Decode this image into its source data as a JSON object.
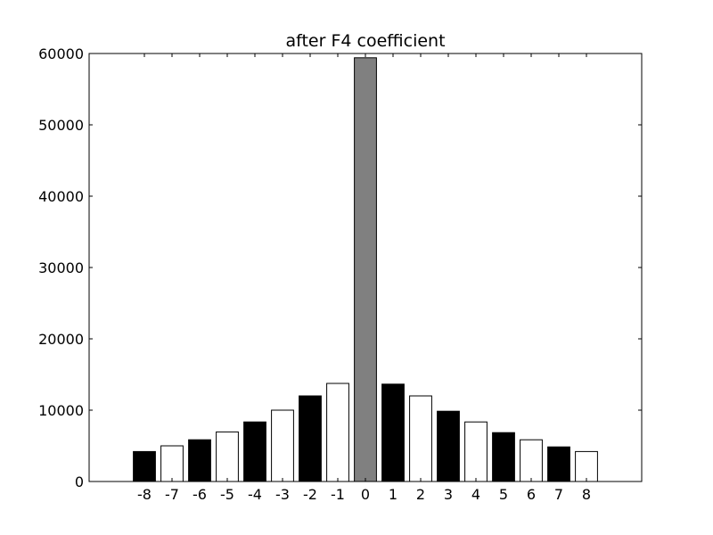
{
  "chart_data": {
    "type": "bar",
    "title": "after F4 coefficient",
    "xlabel": "",
    "ylabel": "",
    "categories": [
      "-8",
      "-7",
      "-6",
      "-5",
      "-4",
      "-3",
      "-2",
      "-1",
      "0",
      "1",
      "2",
      "3",
      "4",
      "5",
      "6",
      "7",
      "8"
    ],
    "values": [
      4200,
      5000,
      5850,
      6950,
      8350,
      10000,
      12000,
      13750,
      59400,
      13650,
      12000,
      9850,
      8350,
      6850,
      5850,
      4850,
      4200
    ],
    "bar_colors": [
      "#000000",
      "#ffffff",
      "#000000",
      "#ffffff",
      "#000000",
      "#ffffff",
      "#000000",
      "#ffffff",
      "#808080",
      "#000000",
      "#ffffff",
      "#000000",
      "#ffffff",
      "#000000",
      "#ffffff",
      "#000000",
      "#ffffff"
    ],
    "ylim": [
      0,
      60000
    ],
    "xlim": [
      -10,
      10
    ],
    "yticks": [
      0,
      10000,
      20000,
      30000,
      40000,
      50000,
      60000
    ],
    "grid": false,
    "legend": "none"
  }
}
